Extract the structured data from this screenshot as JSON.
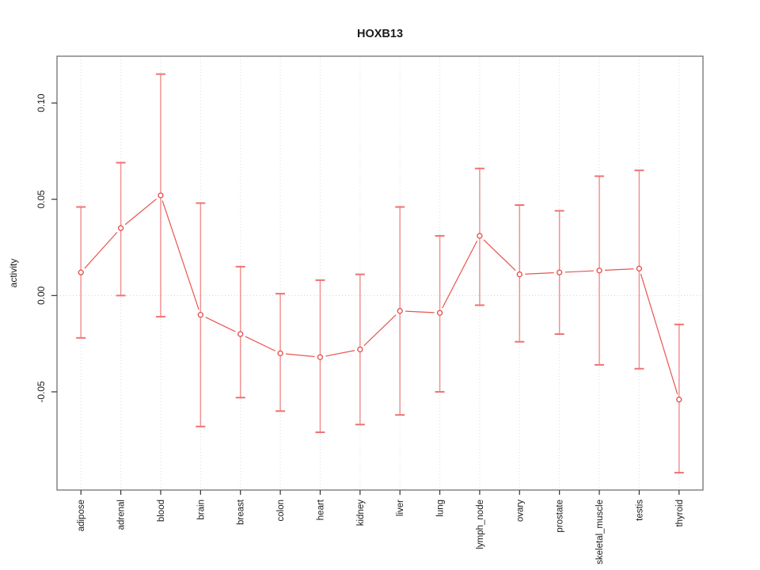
{
  "window": {
    "background": "#ffffff"
  },
  "chart_data": {
    "type": "line",
    "title": "HOXB13",
    "xlabel": "",
    "ylabel": "activity",
    "legend": "none",
    "grid": {
      "vertical_dotted_gridlines": true,
      "zero_line_dotted": true
    },
    "categories": [
      "adipose",
      "adrenal",
      "blood",
      "brain",
      "breast",
      "colon",
      "heart",
      "kidney",
      "liver",
      "lung",
      "lymph_node",
      "ovary",
      "prostate",
      "skeletal_muscle",
      "testis",
      "thyroid"
    ],
    "series": [
      {
        "name": "activity",
        "marker": "open-circle",
        "values": [
          0.012,
          0.035,
          0.052,
          -0.01,
          -0.02,
          -0.03,
          -0.032,
          -0.028,
          -0.008,
          -0.009,
          0.031,
          0.011,
          0.012,
          0.013,
          0.014,
          -0.054
        ],
        "error_upper": [
          0.046,
          0.069,
          0.115,
          0.048,
          0.015,
          0.001,
          0.008,
          0.011,
          0.046,
          0.031,
          0.066,
          0.047,
          0.044,
          0.062,
          0.065,
          -0.015
        ],
        "error_lower": [
          -0.022,
          0.0,
          -0.011,
          -0.068,
          -0.053,
          -0.06,
          -0.071,
          -0.067,
          -0.062,
          -0.05,
          -0.005,
          -0.024,
          -0.02,
          -0.036,
          -0.038,
          -0.092
        ]
      }
    ],
    "yticks": [
      {
        "value": -0.05,
        "label": "-0.05"
      },
      {
        "value": 0.0,
        "label": "0.00"
      },
      {
        "value": 0.05,
        "label": "0.05"
      },
      {
        "value": 0.1,
        "label": "0.10"
      }
    ],
    "ylim": [
      -0.101,
      0.1243
    ],
    "colors": {
      "point": "#e34b4b",
      "line": "#e8554e",
      "error_bar": "#f08080",
      "error_cap": "#ee7272",
      "gridline": "#dcdcdc",
      "zero_line": "#e7caca",
      "frame": "#666666",
      "tick": "#333333",
      "text": "#1a1a1a"
    }
  }
}
